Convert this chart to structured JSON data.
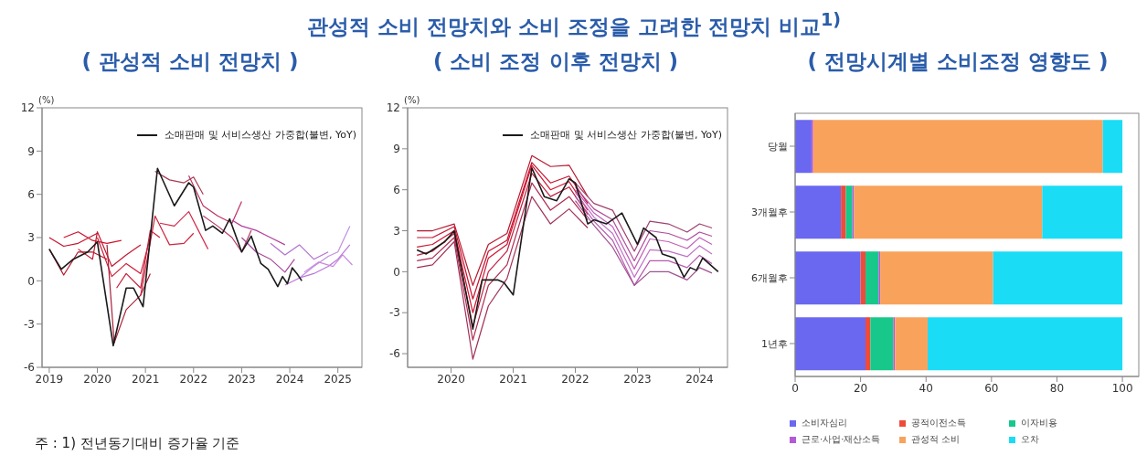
{
  "chart_data": [
    {
      "type": "other",
      "title": "관성적 소비 전망치와 소비 조정을 고려한 전망치 비교$^{1)}$"
    },
    {
      "type": "line",
      "title": "( 관성적 소비 전망치 )",
      "ylabel": "(%)",
      "annotations": [
        "주 : 1) 전년동기대비 증가율 기준"
      ],
      "legend": "top right",
      "xlim": [
        2018.85,
        2025.5
      ],
      "xticks": [
        2019,
        2020,
        2021,
        2022,
        2023,
        2024,
        2025
      ],
      "ylim": [
        -6,
        12
      ],
      "yticks": [
        -6,
        -3,
        0,
        3,
        6,
        9,
        12
      ],
      "series": [
        {
          "color": "#c8102e",
          "x": [
            2019.0,
            2019.3,
            2019.6,
            2020.0
          ],
          "values": [
            3.0,
            2.4,
            2.6,
            3.3
          ]
        },
        {
          "color": "#b5122b",
          "x": [
            2019.0,
            2019.3,
            2019.6,
            2019.9,
            2020.2
          ],
          "values": [
            2.2,
            0.4,
            2.0,
            2.0,
            1.5
          ]
        },
        {
          "color": "#d0142e",
          "x": [
            2019.3,
            2019.6,
            2019.9,
            2020.2,
            2020.5
          ],
          "values": [
            3.0,
            3.4,
            2.8,
            2.6,
            2.8
          ]
        },
        {
          "color": "#c41830",
          "x": [
            2019.6,
            2019.9,
            2020.0,
            2020.3,
            2020.6,
            2020.9
          ],
          "values": [
            2.2,
            1.5,
            3.4,
            1.0,
            1.8,
            2.5
          ]
        },
        {
          "color": "#d01a34",
          "x": [
            2020.0,
            2020.3,
            2020.6,
            2020.9,
            2021.1
          ],
          "values": [
            3.0,
            0.3,
            1.2,
            0.5,
            3.0
          ]
        },
        {
          "color": "#a8203a",
          "x": [
            2020.2,
            2020.35,
            2020.6,
            2020.9,
            2021.1
          ],
          "values": [
            2.5,
            -4.3,
            -2.0,
            -1.0,
            0.5
          ]
        },
        {
          "color": "#c81e3c",
          "x": [
            2020.4,
            2020.6,
            2020.9,
            2021.1,
            2021.3
          ],
          "values": [
            -0.5,
            0.5,
            -0.5,
            3.5,
            3.0
          ]
        },
        {
          "color": "#d0243e",
          "x": [
            2020.9,
            2021.2,
            2021.5,
            2021.8,
            2022.0
          ],
          "values": [
            -1.0,
            4.5,
            2.5,
            2.6,
            3.3
          ]
        },
        {
          "color": "#a83850",
          "x": [
            2021.2,
            2021.5,
            2021.8,
            2022.0,
            2022.2
          ],
          "values": [
            7.6,
            7.0,
            6.8,
            7.2,
            6.0
          ]
        },
        {
          "color": "#d02a48",
          "x": [
            2021.3,
            2021.6,
            2021.9,
            2022.1,
            2022.3
          ],
          "values": [
            4.0,
            3.8,
            4.8,
            3.5,
            2.2
          ]
        },
        {
          "color": "#c03060",
          "x": [
            2021.9,
            2022.2,
            2022.5,
            2022.8,
            2023.0
          ],
          "values": [
            7.3,
            5.2,
            4.5,
            4.0,
            5.5
          ]
        },
        {
          "color": "#b8386a",
          "x": [
            2022.2,
            2022.5,
            2022.8,
            2023.0,
            2023.2
          ],
          "values": [
            4.5,
            3.8,
            3.0,
            2.0,
            3.5
          ]
        },
        {
          "color": "#b0409a",
          "x": [
            2022.8,
            2023.0,
            2023.3,
            2023.6,
            2023.9
          ],
          "values": [
            4.2,
            3.8,
            3.5,
            3.0,
            2.5
          ]
        },
        {
          "color": "#a8489c",
          "x": [
            2023.0,
            2023.3,
            2023.6,
            2023.9,
            2024.1
          ],
          "values": [
            3.0,
            2.0,
            1.5,
            0.6,
            1.5
          ]
        },
        {
          "color": "#b070d0",
          "x": [
            2023.6,
            2023.9,
            2024.2,
            2024.5,
            2024.8
          ],
          "values": [
            2.6,
            1.8,
            2.5,
            1.5,
            2.0
          ]
        },
        {
          "color": "#b878d8",
          "x": [
            2023.9,
            2024.2,
            2024.5,
            2024.8,
            2025.0,
            2025.25
          ],
          "values": [
            -0.3,
            0.2,
            0.5,
            1.0,
            1.5,
            2.5
          ]
        },
        {
          "color": "#c090e0",
          "x": [
            2024.2,
            2024.5,
            2024.8,
            2025.0,
            2025.25
          ],
          "values": [
            0.2,
            1.0,
            1.7,
            2.0,
            3.8
          ]
        },
        {
          "color": "#c888e0",
          "x": [
            2024.3,
            2024.6,
            2024.9,
            2025.1,
            2025.3
          ],
          "values": [
            0.6,
            1.3,
            1.0,
            1.8,
            1.1
          ]
        },
        {
          "name": "소매판매 및 서비스생산 가중합(불변, YoY)",
          "color": "#1a1a1a",
          "x": [
            2019.0,
            2019.25,
            2019.5,
            2019.8,
            2020.0,
            2020.33,
            2020.6,
            2020.75,
            2020.95,
            2021.25,
            2021.6,
            2021.9,
            2022.0,
            2022.25,
            2022.4,
            2022.6,
            2022.75,
            2023.0,
            2023.2,
            2023.4,
            2023.55,
            2023.75,
            2023.85,
            2023.95,
            2024.05,
            2024.15,
            2024.25
          ],
          "values": [
            2.2,
            0.8,
            1.5,
            2.0,
            2.7,
            -4.5,
            -0.5,
            -0.5,
            -1.8,
            7.8,
            5.2,
            6.8,
            6.5,
            3.5,
            3.8,
            3.3,
            4.3,
            2.0,
            3.1,
            1.2,
            0.8,
            -0.4,
            0.3,
            -0.2,
            0.9,
            0.5,
            0.0
          ]
        }
      ]
    },
    {
      "type": "line",
      "title": "( 소비 조정 이후 전망치 )",
      "ylabel": "(%)",
      "legend": "top right",
      "xlim": [
        2019.3,
        2024.45
      ],
      "xticks": [
        2020,
        2021,
        2022,
        2023,
        2024
      ],
      "ylim": [
        -7,
        12
      ],
      "yticks": [
        -6,
        -3,
        0,
        3,
        6,
        9,
        12
      ],
      "series": [
        {
          "color": "#b81a30",
          "x": [
            2019.45,
            2019.7,
            2020.05,
            2020.35,
            2020.6,
            2020.9,
            2021.3,
            2021.6,
            2021.9,
            2022.2
          ],
          "values": [
            3.0,
            3.0,
            3.5,
            -1.0,
            2.0,
            2.8,
            8.5,
            7.7,
            7.8,
            5.5
          ]
        },
        {
          "color": "#c8102e",
          "x": [
            2019.45,
            2019.7,
            2020.05,
            2020.35,
            2020.6,
            2020.9,
            2021.3,
            2021.6,
            2021.9,
            2022.2
          ],
          "values": [
            2.5,
            2.5,
            3.3,
            -2.0,
            1.5,
            2.3,
            8.0,
            6.5,
            7.0,
            5.0
          ]
        },
        {
          "color": "#d0142e",
          "x": [
            2019.45,
            2019.7,
            2020.05,
            2020.35,
            2020.6,
            2020.9,
            2021.3,
            2021.6,
            2021.9,
            2022.2
          ],
          "values": [
            1.8,
            2.0,
            3.0,
            -3.0,
            1.0,
            2.0,
            7.8,
            6.0,
            6.6,
            4.5
          ]
        },
        {
          "color": "#c02040",
          "x": [
            2019.45,
            2019.7,
            2020.05,
            2020.35,
            2020.6,
            2020.9,
            2021.3,
            2021.6,
            2021.9,
            2022.2
          ],
          "values": [
            1.2,
            1.5,
            2.8,
            -4.0,
            0.0,
            1.5,
            7.2,
            5.5,
            6.2,
            4.2
          ]
        },
        {
          "color": "#b02850",
          "x": [
            2019.45,
            2019.7,
            2020.05,
            2020.35,
            2020.6,
            2020.9,
            2021.3,
            2021.6,
            2021.9,
            2022.2
          ],
          "values": [
            0.8,
            1.0,
            2.5,
            -5.0,
            -1.0,
            0.5,
            6.5,
            4.5,
            5.5,
            3.8
          ]
        },
        {
          "color": "#a03058",
          "x": [
            2019.45,
            2019.7,
            2020.05,
            2020.35,
            2020.6,
            2020.9,
            2021.3,
            2021.6,
            2021.9,
            2022.2
          ],
          "values": [
            0.3,
            0.5,
            2.2,
            -6.4,
            -2.5,
            -0.5,
            5.5,
            3.5,
            4.6,
            3.2
          ]
        },
        {
          "color": "#a04070",
          "x": [
            2022.0,
            2022.3,
            2022.6,
            2022.95,
            2023.2,
            2023.5,
            2023.8,
            2024.0,
            2024.2
          ],
          "values": [
            6.5,
            5.0,
            4.5,
            1.5,
            3.7,
            3.5,
            2.9,
            3.5,
            3.2
          ]
        },
        {
          "color": "#b04c9c",
          "x": [
            2022.0,
            2022.3,
            2022.6,
            2022.95,
            2023.2,
            2023.5,
            2023.8,
            2024.0,
            2024.2
          ],
          "values": [
            6.2,
            4.6,
            3.8,
            0.8,
            3.0,
            2.8,
            2.3,
            2.9,
            2.6
          ]
        },
        {
          "color": "#c060b8",
          "x": [
            2022.0,
            2022.3,
            2022.6,
            2022.95,
            2023.2,
            2023.5,
            2023.8,
            2024.0,
            2024.2
          ],
          "values": [
            6.0,
            4.3,
            3.3,
            0.2,
            2.4,
            2.2,
            1.7,
            2.5,
            2.0
          ]
        },
        {
          "color": "#c070c8",
          "x": [
            2022.0,
            2022.3,
            2022.6,
            2022.95,
            2023.2,
            2023.5,
            2023.8,
            2024.0,
            2024.2
          ],
          "values": [
            5.8,
            4.0,
            2.8,
            -0.4,
            1.6,
            1.5,
            1.1,
            1.9,
            1.3
          ]
        },
        {
          "color": "#b858b0",
          "x": [
            2022.0,
            2022.3,
            2022.6,
            2022.95,
            2023.2,
            2023.5,
            2023.8,
            2024.0,
            2024.2
          ],
          "values": [
            5.5,
            3.7,
            2.3,
            -1.0,
            0.8,
            0.8,
            0.3,
            1.2,
            0.6
          ]
        },
        {
          "color": "#a05090",
          "x": [
            2022.0,
            2022.3,
            2022.6,
            2022.95,
            2023.2,
            2023.5,
            2023.8,
            2024.0,
            2024.2
          ],
          "values": [
            5.2,
            3.4,
            1.8,
            -1.0,
            0.0,
            0.0,
            -0.6,
            0.3,
            -0.1
          ]
        },
        {
          "name": "소매판매 및 서비스생산 가중합(불변, YoY)",
          "color": "#1a1a1a",
          "x": [
            2019.45,
            2019.6,
            2019.9,
            2020.05,
            2020.35,
            2020.5,
            2020.75,
            2020.85,
            2021.0,
            2021.3,
            2021.5,
            2021.7,
            2021.9,
            2022.0,
            2022.2,
            2022.3,
            2022.5,
            2022.75,
            2023.0,
            2023.1,
            2023.3,
            2023.4,
            2023.6,
            2023.75,
            2023.85,
            2023.95,
            2024.05,
            2024.15,
            2024.3
          ],
          "values": [
            1.6,
            1.3,
            2.2,
            3.0,
            -4.2,
            -0.6,
            -0.6,
            -0.8,
            -1.7,
            7.6,
            5.5,
            5.2,
            6.8,
            6.5,
            3.5,
            3.8,
            3.5,
            4.3,
            2.0,
            3.2,
            2.5,
            1.3,
            1.0,
            -0.4,
            0.3,
            0.1,
            1.0,
            0.6,
            0.0
          ]
        }
      ]
    },
    {
      "type": "bar",
      "title": "( 전망시계별 소비조정 영향도 )",
      "orientation": "horizontal",
      "stacked": true,
      "legend": "bottom",
      "categories": [
        "당월",
        "3개월후",
        "6개월후",
        "1년후"
      ],
      "xlim": [
        0,
        105
      ],
      "xticks": [
        0,
        20,
        40,
        60,
        80,
        100
      ],
      "series": [
        {
          "name": "소비자심리",
          "color": "#6a67f0",
          "values": [
            5,
            14,
            20,
            21.5
          ]
        },
        {
          "name": "공적이전소득",
          "color": "#ee4b3b",
          "values": [
            0,
            1.5,
            1.5,
            1.5
          ]
        },
        {
          "name": "이자비용",
          "color": "#17c88a",
          "values": [
            0,
            2,
            4,
            7
          ]
        },
        {
          "name": "근로·사업·재산소득",
          "color": "#b35ad6",
          "values": [
            0.5,
            0.5,
            0.5,
            0.5
          ]
        },
        {
          "name": "관성적 소비",
          "color": "#f9a25c",
          "values": [
            88.5,
            57.5,
            34.5,
            10
          ]
        },
        {
          "name": "오차",
          "color": "#1bdcf5",
          "values": [
            6,
            24.5,
            39.5,
            59.5
          ]
        }
      ]
    }
  ]
}
